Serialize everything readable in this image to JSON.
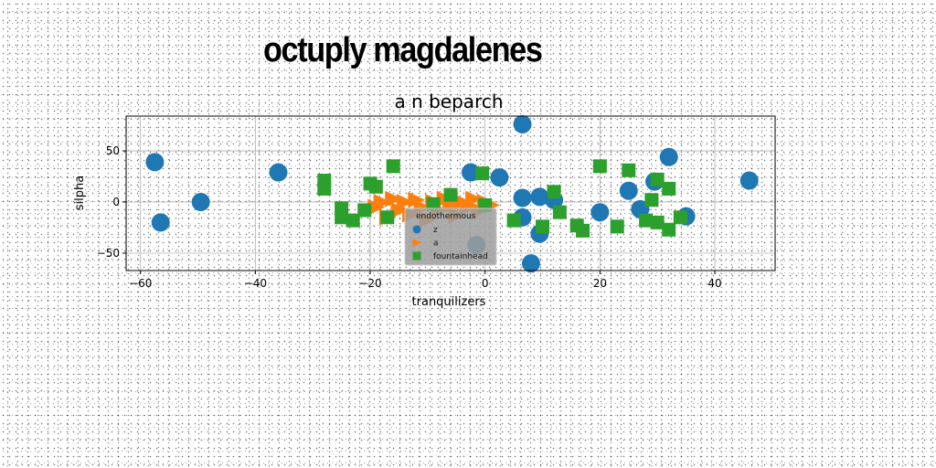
{
  "page_title": "octuply magdalenes",
  "chart_data": {
    "type": "scatter",
    "title": "a n beparch",
    "xlabel": "tranquilizers",
    "ylabel": "silpha",
    "xlim": [
      -62.5,
      50.5
    ],
    "ylim": [
      -67,
      84
    ],
    "xticks": [
      -60,
      -40,
      -20,
      0,
      20,
      40
    ],
    "yticks": [
      -50,
      0,
      50
    ],
    "grid": true,
    "legend": {
      "title": "endothermous",
      "placement": "lower-center"
    },
    "series": [
      {
        "name": "z",
        "marker": "circle",
        "color": "#1f77b4",
        "points": [
          [
            -57.5,
            39
          ],
          [
            -56.5,
            -20
          ],
          [
            -49.5,
            0
          ],
          [
            -36,
            29
          ],
          [
            -2.5,
            29
          ],
          [
            2.5,
            24
          ],
          [
            6.5,
            76
          ],
          [
            6.5,
            4
          ],
          [
            6.5,
            -15
          ],
          [
            9.5,
            -31
          ],
          [
            9.5,
            5
          ],
          [
            12,
            2
          ],
          [
            20,
            -10
          ],
          [
            25,
            11
          ],
          [
            27,
            -7
          ],
          [
            29.5,
            20
          ],
          [
            32,
            44
          ],
          [
            35,
            -14
          ],
          [
            46,
            21
          ],
          [
            -1.5,
            -42
          ],
          [
            8,
            -60
          ]
        ]
      },
      {
        "name": "a",
        "marker": "triangle-right",
        "color": "#ff7f0e",
        "points": [
          [
            -19,
            -5
          ],
          [
            -18,
            0
          ],
          [
            -17,
            -15
          ],
          [
            -16,
            3
          ],
          [
            -15,
            -8
          ],
          [
            -14,
            0
          ],
          [
            -13,
            -12
          ],
          [
            -12,
            2
          ],
          [
            -11,
            -5
          ],
          [
            -10,
            -17
          ],
          [
            -9,
            0
          ],
          [
            -8,
            -8
          ],
          [
            -7,
            3
          ],
          [
            -6,
            -3
          ],
          [
            -5,
            -13
          ],
          [
            -4,
            0
          ],
          [
            -3,
            -5
          ],
          [
            -2,
            3
          ],
          [
            -1,
            -8
          ],
          [
            0,
            0
          ],
          [
            1,
            -3
          ]
        ]
      },
      {
        "name": "fountainhead",
        "marker": "square",
        "color": "#2ca02c",
        "points": [
          [
            -28,
            21
          ],
          [
            -28,
            13
          ],
          [
            -25,
            -6
          ],
          [
            -25,
            -15
          ],
          [
            -23,
            -18
          ],
          [
            -21,
            -8
          ],
          [
            -20,
            18
          ],
          [
            -19,
            15
          ],
          [
            -17,
            -15
          ],
          [
            -16,
            35
          ],
          [
            -9,
            -2
          ],
          [
            -6,
            7
          ],
          [
            0,
            -3
          ],
          [
            -0.5,
            28
          ],
          [
            5,
            -18
          ],
          [
            10,
            -24
          ],
          [
            12,
            10
          ],
          [
            13,
            -10
          ],
          [
            16,
            -23
          ],
          [
            17,
            -28
          ],
          [
            20,
            35
          ],
          [
            23,
            -24
          ],
          [
            25,
            31
          ],
          [
            28,
            -18
          ],
          [
            29,
            2
          ],
          [
            30,
            -20
          ],
          [
            30,
            22
          ],
          [
            32,
            13
          ],
          [
            32,
            -27
          ],
          [
            34,
            -15
          ]
        ]
      }
    ]
  },
  "colors": {
    "background": "#ffffff",
    "grid": "#b0b0b0",
    "legend_bg": "#9e9e9e"
  }
}
